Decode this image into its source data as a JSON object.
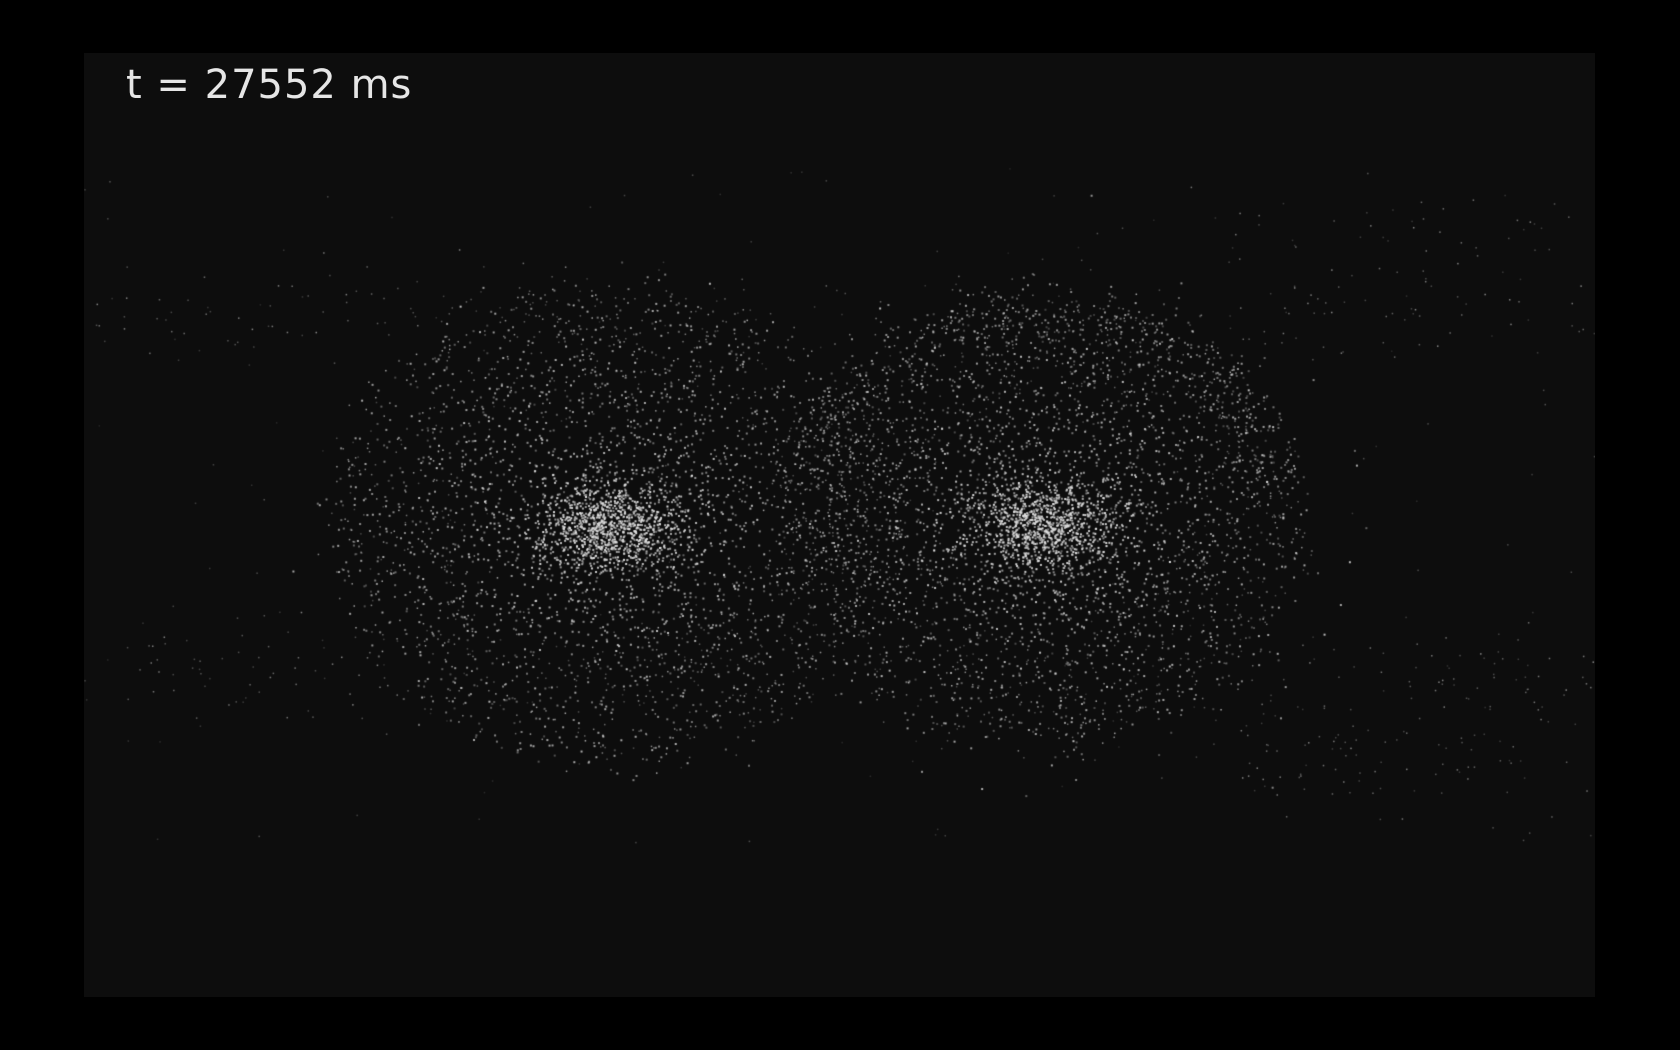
{
  "overlay": {
    "time_label": "t = 27552 ms"
  },
  "colors": {
    "outer_background": "#000000",
    "viewport_background": "#0d0d0d",
    "particle": "#d9d9d9",
    "text": "#e6e6e6"
  },
  "scene": {
    "description_free": true,
    "clusters": 2,
    "particle_field": "starfield"
  }
}
